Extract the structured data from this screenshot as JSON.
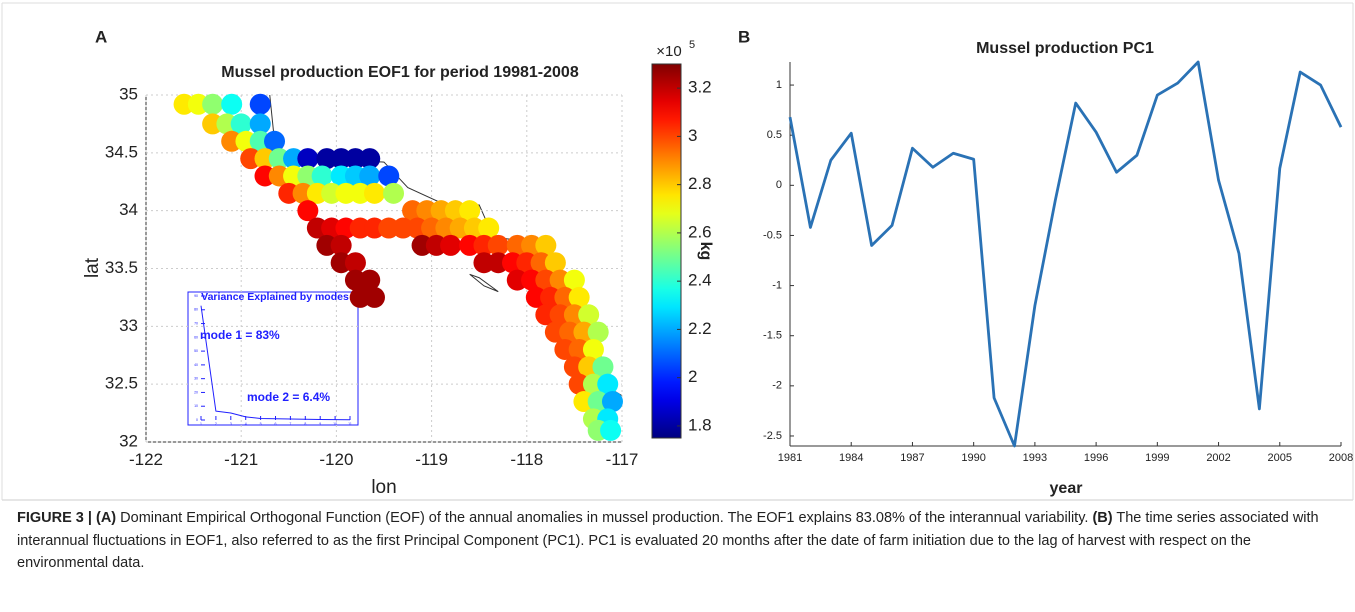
{
  "chart_data": [
    {
      "type": "scatter",
      "panel_label": "A",
      "title": "Mussel production EOF1 for period 19981-2008",
      "xlabel": "lon",
      "ylabel": "lat",
      "xlim": [
        -122,
        -117
      ],
      "xticks": [
        -122,
        -121,
        -120,
        -119,
        -118,
        -117
      ],
      "ylim": [
        32,
        35
      ],
      "yticks": [
        32,
        32.5,
        33,
        33.5,
        34,
        34.5,
        35
      ],
      "grid": true,
      "colorbar": {
        "label": "kg",
        "scale_base": "×10",
        "scale_exponent": 5,
        "lim": [
          1.75,
          3.3
        ],
        "ticks": [
          1.8,
          2,
          2.2,
          2.4,
          2.6,
          2.8,
          3,
          3.2
        ],
        "colormap": "jet"
      },
      "x": [
        -121.6,
        -121.45,
        -121.3,
        -121.1,
        -120.8,
        -121.3,
        -121.15,
        -121.0,
        -120.8,
        -121.1,
        -120.95,
        -120.8,
        -120.65,
        -120.9,
        -120.75,
        -120.6,
        -120.45,
        -120.3,
        -120.1,
        -119.95,
        -119.8,
        -119.65,
        -120.75,
        -120.6,
        -120.45,
        -120.3,
        -120.15,
        -119.95,
        -119.8,
        -119.65,
        -119.45,
        -120.5,
        -120.35,
        -120.2,
        -120.05,
        -119.9,
        -119.75,
        -119.6,
        -119.4,
        -120.3,
        -119.2,
        -119.05,
        -118.9,
        -118.75,
        -118.6,
        -120.2,
        -120.05,
        -119.9,
        -119.75,
        -119.6,
        -119.45,
        -119.3,
        -119.15,
        -119.0,
        -118.85,
        -118.7,
        -118.55,
        -118.4,
        -120.1,
        -119.95,
        -119.1,
        -118.95,
        -118.8,
        -118.6,
        -118.45,
        -118.3,
        -118.1,
        -117.95,
        -117.8,
        -119.95,
        -119.8,
        -118.45,
        -118.3,
        -118.15,
        -118.0,
        -117.85,
        -117.7,
        -119.8,
        -119.65,
        -118.1,
        -117.95,
        -117.8,
        -117.65,
        -117.5,
        -119.75,
        -119.6,
        -117.9,
        -117.75,
        -117.6,
        -117.45,
        -117.8,
        -117.65,
        -117.5,
        -117.35,
        -117.7,
        -117.55,
        -117.4,
        -117.25,
        -117.6,
        -117.45,
        -117.3,
        -117.5,
        -117.35,
        -117.2,
        -117.45,
        -117.3,
        -117.15,
        -117.4,
        -117.25,
        -117.1,
        -117.3,
        -117.15,
        -117.25,
        -117.12
      ],
      "y": [
        34.92,
        34.92,
        34.92,
        34.92,
        34.92,
        34.75,
        34.75,
        34.75,
        34.75,
        34.6,
        34.6,
        34.6,
        34.6,
        34.45,
        34.45,
        34.45,
        34.45,
        34.45,
        34.45,
        34.45,
        34.45,
        34.45,
        34.3,
        34.3,
        34.3,
        34.3,
        34.3,
        34.3,
        34.3,
        34.3,
        34.3,
        34.15,
        34.15,
        34.15,
        34.15,
        34.15,
        34.15,
        34.15,
        34.15,
        34.0,
        34.0,
        34.0,
        34.0,
        34.0,
        34.0,
        33.85,
        33.85,
        33.85,
        33.85,
        33.85,
        33.85,
        33.85,
        33.85,
        33.85,
        33.85,
        33.85,
        33.85,
        33.85,
        33.7,
        33.7,
        33.7,
        33.7,
        33.7,
        33.7,
        33.7,
        33.7,
        33.7,
        33.7,
        33.7,
        33.55,
        33.55,
        33.55,
        33.55,
        33.55,
        33.55,
        33.55,
        33.55,
        33.4,
        33.4,
        33.4,
        33.4,
        33.4,
        33.4,
        33.4,
        33.25,
        33.25,
        33.25,
        33.25,
        33.25,
        33.25,
        33.1,
        33.1,
        33.1,
        33.1,
        32.95,
        32.95,
        32.95,
        32.95,
        32.8,
        32.8,
        32.8,
        32.65,
        32.65,
        32.65,
        32.5,
        32.5,
        32.5,
        32.35,
        32.35,
        32.35,
        32.2,
        32.2,
        32.1,
        32.1
      ],
      "values": [
        2.75,
        2.7,
        2.55,
        2.35,
        2.05,
        2.8,
        2.6,
        2.4,
        2.2,
        2.9,
        2.7,
        2.45,
        2.1,
        3.0,
        2.8,
        2.5,
        2.2,
        1.85,
        1.8,
        1.8,
        1.8,
        1.8,
        3.1,
        2.9,
        2.7,
        2.55,
        2.4,
        2.3,
        2.25,
        2.2,
        2.05,
        3.05,
        2.9,
        2.75,
        2.65,
        2.7,
        2.7,
        2.75,
        2.6,
        3.1,
        2.95,
        2.9,
        2.85,
        2.8,
        2.75,
        3.2,
        3.15,
        3.1,
        3.05,
        3.05,
        3.0,
        3.0,
        3.0,
        2.95,
        2.9,
        2.85,
        2.8,
        2.75,
        3.25,
        3.2,
        3.25,
        3.2,
        3.15,
        3.1,
        3.05,
        3.0,
        2.95,
        2.9,
        2.8,
        3.25,
        3.2,
        3.2,
        3.2,
        3.1,
        3.05,
        2.95,
        2.8,
        3.25,
        3.25,
        3.15,
        3.1,
        3.0,
        2.9,
        2.7,
        3.25,
        3.25,
        3.1,
        3.05,
        2.95,
        2.75,
        3.05,
        3.0,
        2.9,
        2.65,
        3.0,
        2.95,
        2.85,
        2.6,
        3.0,
        2.95,
        2.7,
        3.0,
        2.8,
        2.5,
        3.0,
        2.6,
        2.3,
        2.75,
        2.5,
        2.2,
        2.6,
        2.3,
        2.55,
        2.35
      ]
    },
    {
      "type": "line",
      "title": "Variance Explained by modes",
      "color": "#2020ff",
      "annotations": [
        "mode 1 = 83%",
        "mode 2 = 6.4%"
      ],
      "x": [
        1,
        2,
        3,
        4,
        5,
        6,
        7,
        8,
        9,
        10,
        11
      ],
      "values": [
        83,
        6.4,
        5.1,
        2.3,
        1.1,
        0.9,
        0.7,
        0.5,
        0.4,
        0.3,
        0.2
      ],
      "xlim": [
        1,
        11
      ],
      "xticks": [
        1,
        2,
        3,
        4,
        5,
        6,
        7,
        8,
        9,
        10,
        11
      ],
      "ylim": [
        0,
        90
      ],
      "yticks": [
        0,
        10,
        20,
        30,
        40,
        50,
        60,
        70,
        80,
        90
      ]
    },
    {
      "type": "line",
      "panel_label": "B",
      "title": "Mussel production PC1",
      "xlabel": "year",
      "color": "#2a72b5",
      "x": [
        1981,
        1982,
        1983,
        1984,
        1985,
        1986,
        1987,
        1988,
        1989,
        1990,
        1991,
        1992,
        1993,
        1994,
        1995,
        1996,
        1997,
        1998,
        1999,
        2000,
        2001,
        2002,
        2003,
        2004,
        2005,
        2006,
        2007,
        2008
      ],
      "values": [
        0.68,
        -0.42,
        0.25,
        0.52,
        -0.6,
        -0.4,
        0.37,
        0.18,
        0.32,
        0.26,
        -2.12,
        -2.6,
        -1.2,
        -0.15,
        0.82,
        0.53,
        0.13,
        0.3,
        0.9,
        1.02,
        1.23,
        0.05,
        -0.68,
        -2.23,
        0.17,
        1.13,
        1.0,
        0.58
      ],
      "xlim": [
        1981,
        2008
      ],
      "xticks": [
        1981,
        1984,
        1987,
        1990,
        1993,
        1996,
        1999,
        2002,
        2005,
        2008
      ],
      "ylim": [
        -2.6,
        1.23
      ],
      "yticks": [
        -2.5,
        -2,
        -1.5,
        -1,
        -0.5,
        0,
        0.5,
        1
      ]
    }
  ],
  "caption": {
    "segments": [
      {
        "bold": true,
        "text": "FIGURE 3 | (A)"
      },
      {
        "bold": false,
        "text": " Dominant Empirical Orthogonal Function (EOF) of the annual anomalies in mussel production. The EOF1 explains 83.08% of the interannual variability. "
      },
      {
        "bold": true,
        "text": "(B)"
      },
      {
        "bold": false,
        "text": " The time series associated with interannual fluctuations in EOF1, also referred to as the first Principal Component (PC1). PC1 is evaluated 20 months after the date of farm initiation due to the lag of harvest with respect on the environmental data."
      }
    ]
  }
}
